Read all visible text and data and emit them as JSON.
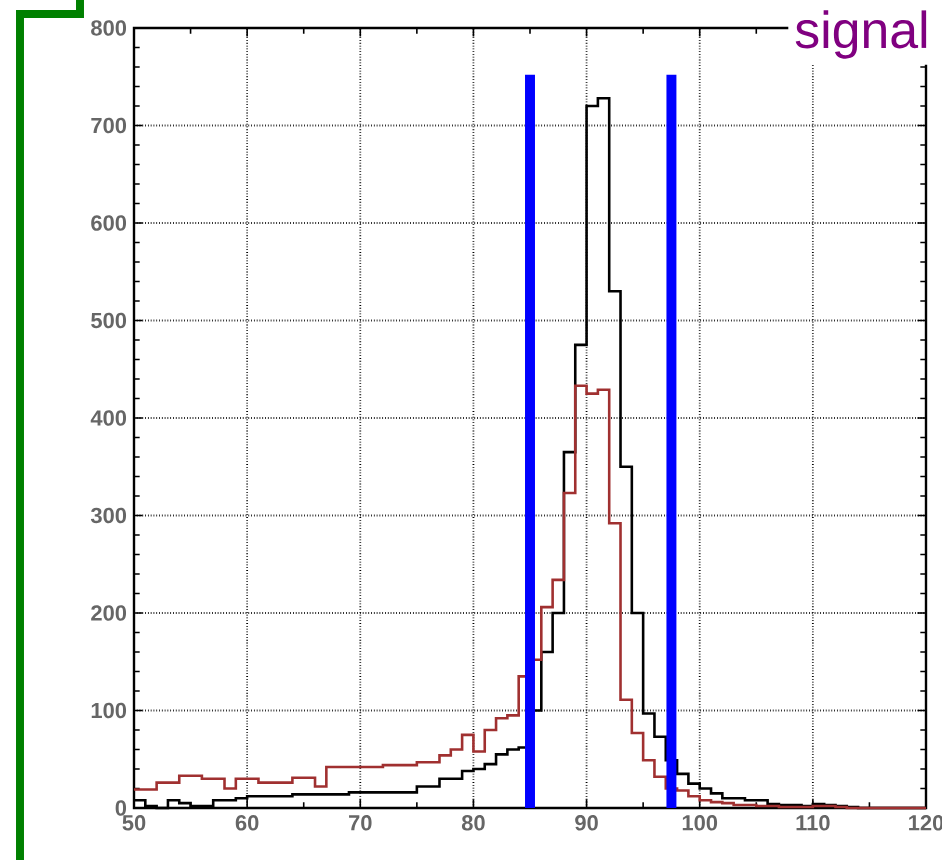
{
  "chart_data": {
    "type": "histogram",
    "bins": [
      50,
      51,
      52,
      53,
      54,
      55,
      56,
      57,
      58,
      59,
      60,
      61,
      62,
      63,
      64,
      65,
      66,
      67,
      68,
      69,
      70,
      71,
      72,
      73,
      74,
      75,
      76,
      77,
      78,
      79,
      80,
      81,
      82,
      83,
      84,
      85,
      86,
      87,
      88,
      89,
      90,
      91,
      92,
      93,
      94,
      95,
      96,
      97,
      98,
      99,
      100,
      101,
      102,
      103,
      104,
      105,
      106,
      107,
      108,
      109,
      110,
      111,
      112,
      113,
      114,
      115,
      116,
      117,
      118,
      119,
      120
    ],
    "series": [
      {
        "color": "#000000",
        "values": [
          8,
          2,
          0,
          8,
          5,
          2,
          2,
          8,
          8,
          10,
          12,
          12,
          12,
          12,
          14,
          14,
          14,
          14,
          14,
          16,
          16,
          16,
          16,
          16,
          16,
          22,
          22,
          30,
          30,
          38,
          40,
          45,
          55,
          60,
          62,
          100,
          160,
          200,
          365,
          475,
          720,
          728,
          530,
          350,
          200,
          97,
          73,
          49,
          35,
          25,
          20,
          15,
          10,
          10,
          8,
          8,
          4,
          3,
          3,
          2,
          4,
          3,
          2,
          1,
          0,
          0,
          0,
          0,
          0,
          0
        ]
      },
      {
        "color": "#a03030",
        "values": [
          19,
          19,
          26,
          26,
          33,
          33,
          30,
          30,
          20,
          30,
          30,
          26,
          26,
          26,
          31,
          31,
          22,
          42,
          42,
          42,
          42,
          42,
          44,
          44,
          44,
          47,
          47,
          54,
          60,
          75,
          58,
          80,
          92,
          95,
          135,
          152,
          206,
          234,
          323,
          433,
          425,
          429,
          292,
          111,
          77,
          49,
          32,
          20,
          18,
          12,
          8,
          6,
          5,
          3,
          3,
          2,
          2,
          1,
          1,
          1,
          2,
          2,
          1,
          0,
          0,
          0,
          0,
          0,
          0,
          0
        ]
      }
    ],
    "xlim": [
      50,
      120
    ],
    "ylim": [
      0,
      800
    ],
    "xticks": [
      50,
      60,
      70,
      80,
      90,
      100,
      110,
      120
    ],
    "yticks": [
      0,
      100,
      200,
      300,
      400,
      500,
      600,
      700,
      800
    ],
    "grid": true,
    "ref_lines": [
      {
        "axis": "x",
        "value": 85,
        "color": "#0000ff"
      },
      {
        "axis": "x",
        "value": 97.5,
        "color": "#0000ff"
      }
    ],
    "annotations": [
      "signal"
    ]
  }
}
